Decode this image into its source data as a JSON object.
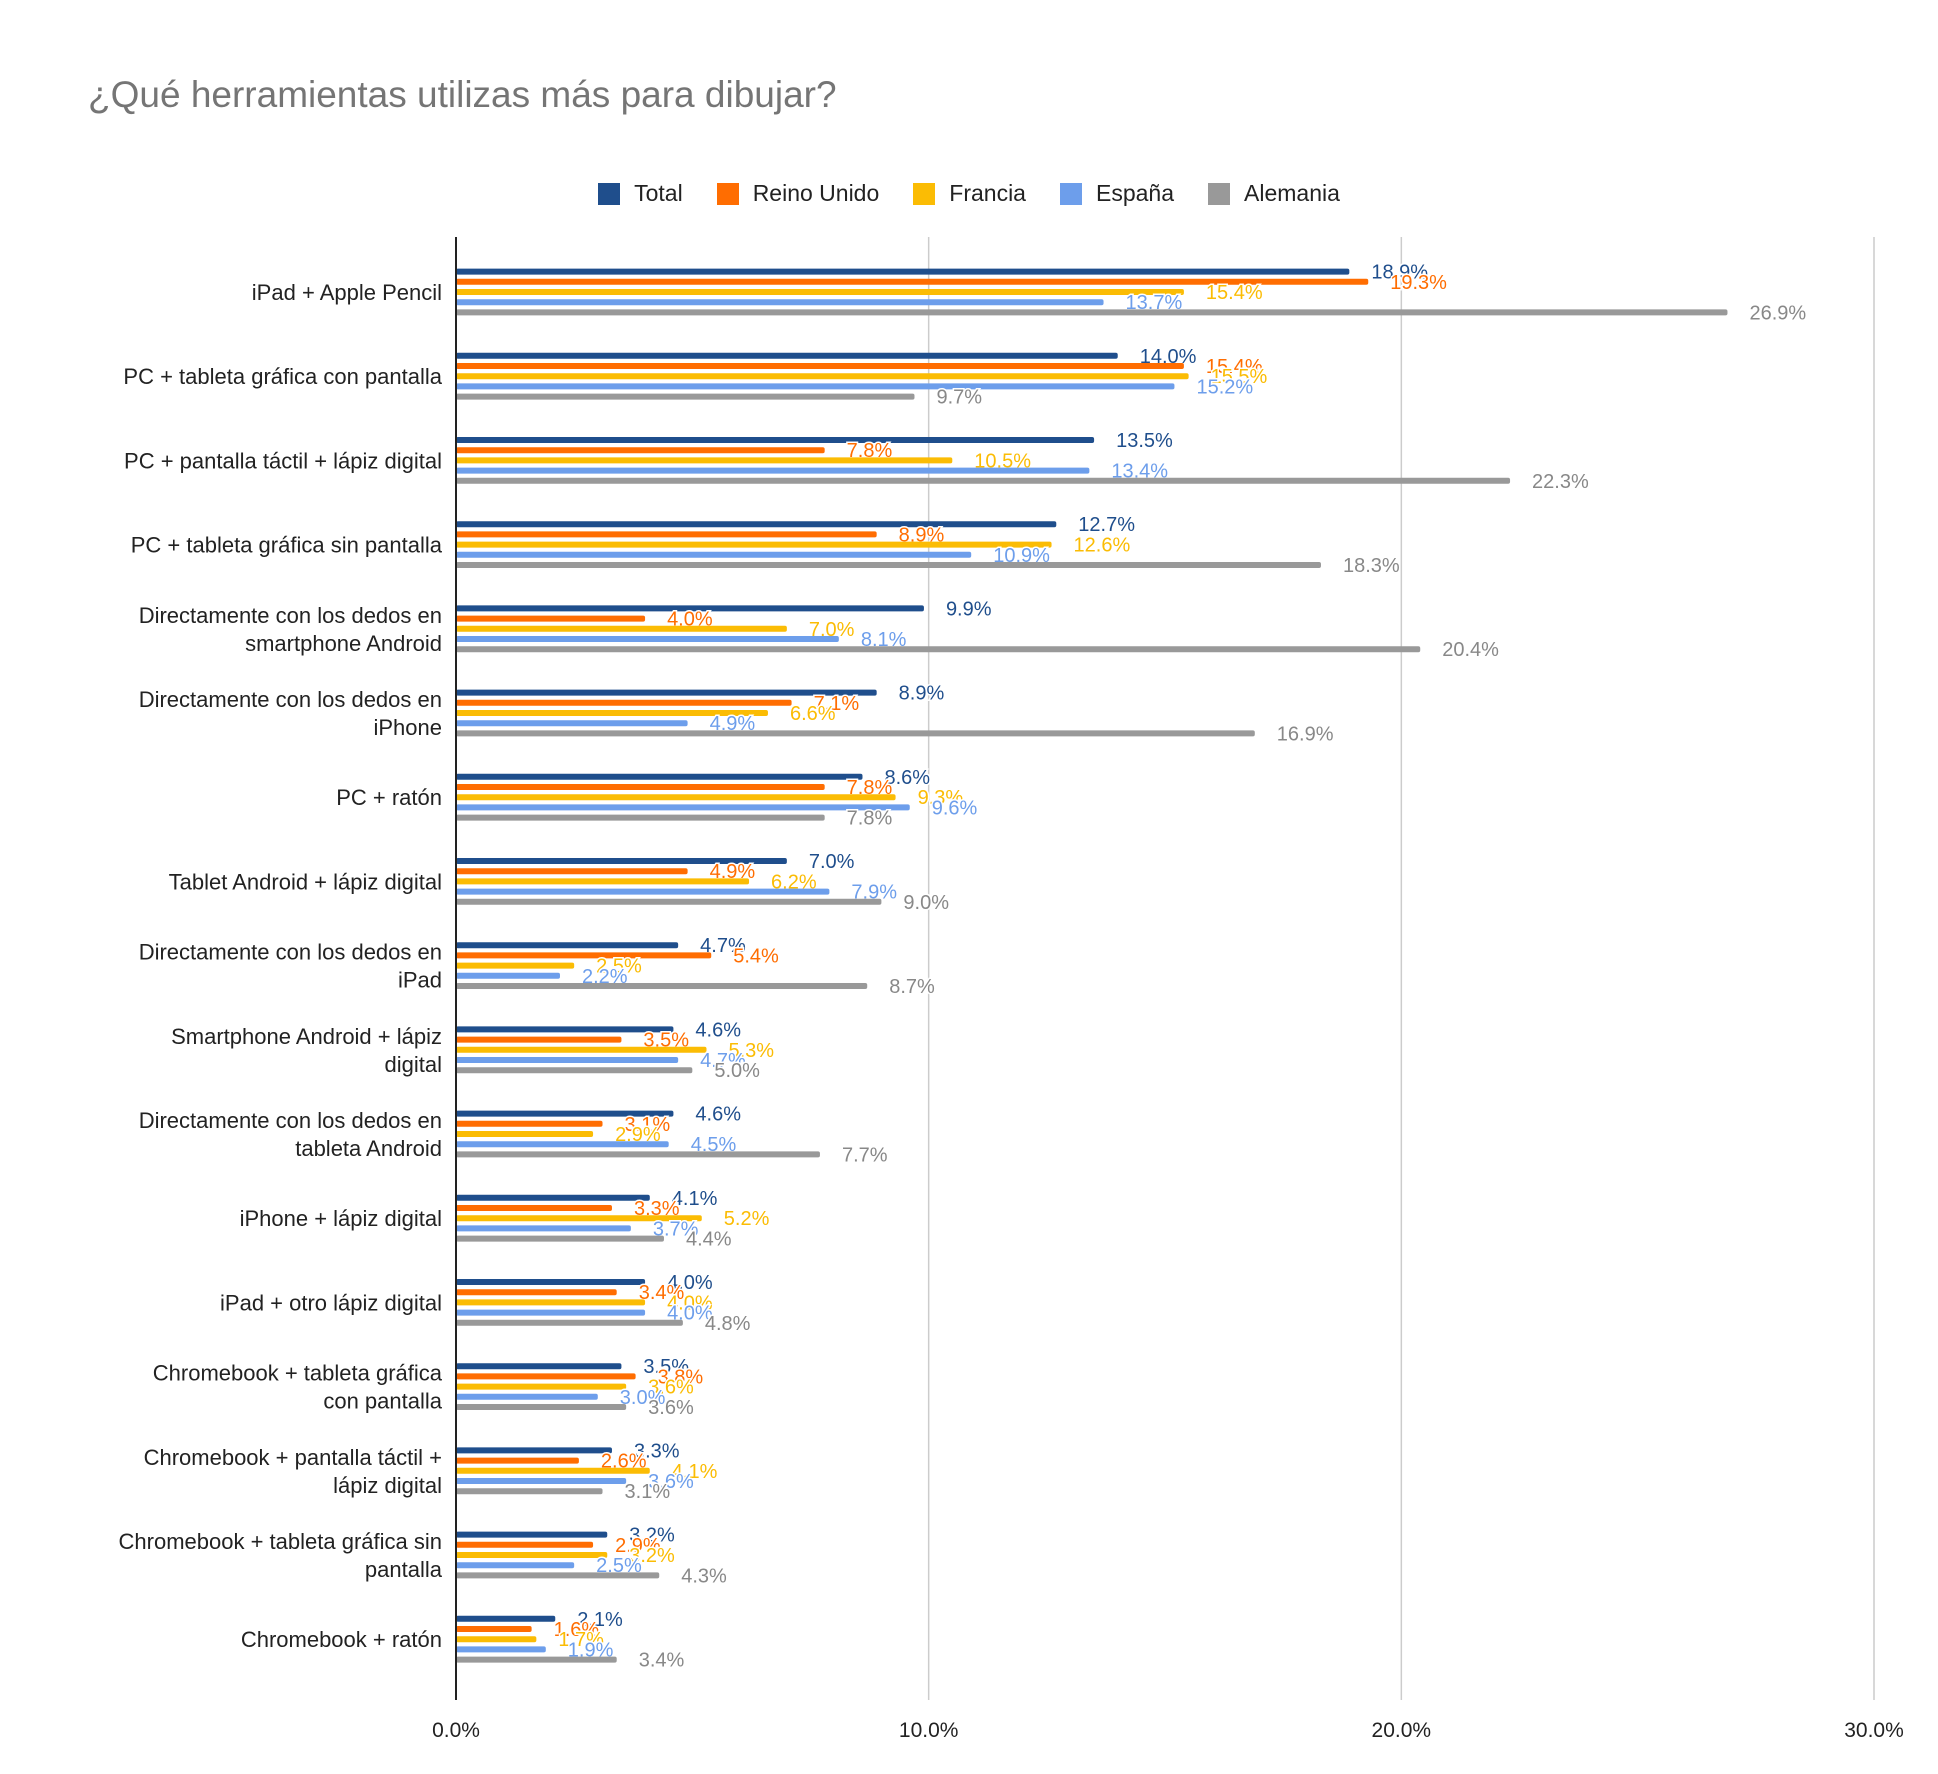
{
  "chart_data": {
    "type": "bar",
    "orientation": "horizontal",
    "title": "¿Qué herramientas utilizas más para dibujar?",
    "xlabel": "",
    "ylabel": "",
    "xlim": [
      0,
      30
    ],
    "x_ticks": [
      "0.0%",
      "10.0%",
      "20.0%",
      "30.0%"
    ],
    "grid": true,
    "legend_position": "top",
    "categories": [
      [
        "iPad + Apple Pencil"
      ],
      [
        "PC + tableta gráfica con pantalla"
      ],
      [
        "PC + pantalla táctil + lápiz digital"
      ],
      [
        "PC + tableta gráfica sin pantalla"
      ],
      [
        "Directamente con los dedos en",
        "smartphone Android"
      ],
      [
        "Directamente con los dedos en",
        "iPhone"
      ],
      [
        "PC + ratón"
      ],
      [
        "Tablet Android + lápiz digital"
      ],
      [
        "Directamente con los dedos en",
        "iPad"
      ],
      [
        "Smartphone Android + lápiz",
        "digital"
      ],
      [
        "Directamente con los dedos en",
        "tableta Android"
      ],
      [
        "iPhone + lápiz digital"
      ],
      [
        "iPad + otro lápiz digital"
      ],
      [
        "Chromebook + tableta gráfica",
        "con pantalla"
      ],
      [
        "Chromebook + pantalla táctil +",
        "lápiz digital"
      ],
      [
        "Chromebook + tableta gráfica sin",
        "pantalla"
      ],
      [
        "Chromebook + ratón"
      ]
    ],
    "series": [
      {
        "name": "Total",
        "color": "#1f4e8c",
        "values": [
          18.9,
          14.0,
          13.5,
          12.7,
          9.9,
          8.9,
          8.6,
          7.0,
          4.7,
          4.6,
          4.6,
          4.1,
          4.0,
          3.5,
          3.3,
          3.2,
          2.1
        ]
      },
      {
        "name": "Reino Unido",
        "color": "#ff6d01",
        "values": [
          19.3,
          15.4,
          7.8,
          8.9,
          4.0,
          7.1,
          7.8,
          4.9,
          5.4,
          3.5,
          3.1,
          3.3,
          3.4,
          3.8,
          2.6,
          2.9,
          1.6
        ]
      },
      {
        "name": "Francia",
        "color": "#fbbc04",
        "values": [
          15.4,
          15.5,
          10.5,
          12.6,
          7.0,
          6.6,
          9.3,
          6.2,
          2.5,
          5.3,
          2.9,
          5.2,
          4.0,
          3.6,
          4.1,
          3.2,
          1.7
        ]
      },
      {
        "name": "España",
        "color": "#6d9eeb",
        "values": [
          13.7,
          15.2,
          13.4,
          10.9,
          8.1,
          4.9,
          9.6,
          7.9,
          2.2,
          4.7,
          4.5,
          3.7,
          4.0,
          3.0,
          3.6,
          2.5,
          1.9
        ]
      },
      {
        "name": "Alemania",
        "color": "#999999",
        "values": [
          26.9,
          9.7,
          22.3,
          18.3,
          20.4,
          16.9,
          7.8,
          9.0,
          8.7,
          5.0,
          7.7,
          4.4,
          4.8,
          3.6,
          3.1,
          4.3,
          3.4
        ]
      }
    ]
  }
}
